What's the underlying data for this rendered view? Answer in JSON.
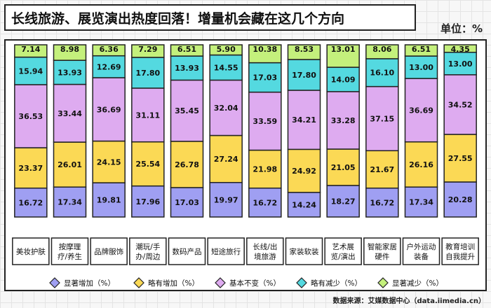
{
  "title": "长线旅游、展览演出热度回落！增量机会藏在这几个方向",
  "unit": "单位：%",
  "source": "数据来源：艾媒数据中心（data.iimedia.cn）",
  "colors": {
    "significant_increase": "#9f9ff2",
    "slight_increase": "#fbd955",
    "unchanged": "#deabf0",
    "slight_decrease": "#54d9e0",
    "significant_decrease": "#c4f07c",
    "border": "#222222"
  },
  "chart_data": {
    "type": "bar",
    "stacked": true,
    "normalized_percent": true,
    "categories": [
      "美妆护肤",
      "按摩理疗/养生",
      "品牌服饰",
      "潮玩/手办/周边",
      "数码产品",
      "短途旅行",
      "长线/出境旅游",
      "家装软装",
      "艺术展览/演出",
      "智能家居硬件",
      "户外运动装备",
      "教育培训自我提升"
    ],
    "category_lines": [
      [
        "美妆护肤"
      ],
      [
        "按摩理",
        "疗/养生"
      ],
      [
        "品牌服饰"
      ],
      [
        "潮玩/手",
        "办/周边"
      ],
      [
        "数码产品"
      ],
      [
        "短途旅行"
      ],
      [
        "长线/出",
        "境旅游"
      ],
      [
        "家装软装"
      ],
      [
        "艺术展",
        "览/演出"
      ],
      [
        "智能家居",
        "硬件"
      ],
      [
        "户外运动",
        "装备"
      ],
      [
        "教育培训",
        "自我提升"
      ]
    ],
    "series": [
      {
        "name": "显著增加（%）",
        "color": "#9f9ff2",
        "values": [
          16.72,
          17.34,
          19.81,
          17.96,
          17.03,
          19.97,
          16.72,
          14.24,
          18.27,
          16.72,
          17.34,
          20.28
        ]
      },
      {
        "name": "略有增加（%）",
        "color": "#fbd955",
        "values": [
          23.37,
          26.01,
          24.15,
          25.54,
          26.78,
          27.24,
          21.98,
          24.92,
          21.05,
          21.67,
          26.16,
          27.55
        ]
      },
      {
        "name": "基本不变（%）",
        "color": "#deabf0",
        "values": [
          36.53,
          33.44,
          36.69,
          31.11,
          35.45,
          32.04,
          33.59,
          34.21,
          33.28,
          37.15,
          36.69,
          34.52
        ]
      },
      {
        "name": "略有减少（%）",
        "color": "#54d9e0",
        "values": [
          15.94,
          13.93,
          12.69,
          17.8,
          13.93,
          14.55,
          17.03,
          17.8,
          14.09,
          16.1,
          13.0,
          13.0
        ]
      },
      {
        "name": "显著减少（%）",
        "color": "#c4f07c",
        "values": [
          7.14,
          8.98,
          6.36,
          7.29,
          6.51,
          5.9,
          10.38,
          8.53,
          13.01,
          8.06,
          6.51,
          4.35
        ]
      }
    ],
    "legend_position": "bottom",
    "grid": false
  }
}
